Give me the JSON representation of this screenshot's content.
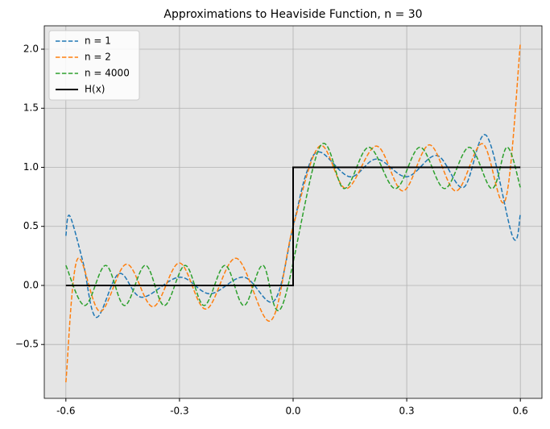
{
  "chart_data": {
    "type": "line",
    "title": "Approximations to Heaviside Function, n = 30",
    "xlim": [
      -0.657,
      0.657
    ],
    "ylim": [
      -0.956,
      2.198
    ],
    "xticks": [
      -0.6,
      -0.3,
      {
        "value": 0,
        "label": "0.0"
      },
      0.3,
      0.6
    ],
    "yticks": [
      {
        "value": -0.5,
        "label": "−0.5"
      },
      {
        "value": 0,
        "label": "0.0"
      },
      0.5,
      {
        "value": 1,
        "label": "1.0"
      },
      1.5,
      {
        "value": 2,
        "label": "2.0"
      }
    ],
    "grid": true,
    "legend": "upper left",
    "series": [
      {
        "name": "n = 1",
        "color": "#1f77b4",
        "style": "dashed",
        "x": [
          -0.6,
          -0.59,
          -0.555,
          -0.52,
          -0.46,
          -0.4,
          -0.3,
          -0.22,
          -0.13,
          -0.05,
          0,
          0.035,
          0.07,
          0.15,
          0.22,
          0.3,
          0.38,
          0.45,
          0.51,
          0.58,
          0.6
        ],
        "values": [
          0.42,
          0.59,
          0.2,
          -0.27,
          0.1,
          -0.1,
          0.07,
          -0.07,
          0.07,
          -0.13,
          0.5,
          0.95,
          1.13,
          0.92,
          1.07,
          0.92,
          1.1,
          0.83,
          1.27,
          0.41,
          0.6
        ]
      },
      {
        "name": "n = 2",
        "color": "#ff7f0e",
        "style": "dashed",
        "x": [
          -0.6,
          -0.57,
          -0.51,
          -0.44,
          -0.37,
          -0.3,
          -0.23,
          -0.15,
          -0.06,
          0,
          0.07,
          0.14,
          0.22,
          0.29,
          0.36,
          0.43,
          0.5,
          0.56,
          0.6
        ],
        "values": [
          -0.82,
          0.22,
          -0.22,
          0.18,
          -0.18,
          0.19,
          -0.2,
          0.23,
          -0.3,
          0.5,
          1.18,
          0.82,
          1.18,
          0.8,
          1.19,
          0.8,
          1.2,
          0.72,
          2.05
        ]
      },
      {
        "name": "n = 4000",
        "color": "#2ca02c",
        "style": "dashed",
        "x": [
          -0.6,
          -0.55,
          -0.495,
          -0.445,
          -0.39,
          -0.34,
          -0.285,
          -0.235,
          -0.18,
          -0.13,
          -0.08,
          -0.03,
          0.07,
          0.135,
          0.2,
          0.27,
          0.335,
          0.4,
          0.465,
          0.525,
          0.565,
          0.6
        ],
        "values": [
          0.17,
          -0.17,
          0.17,
          -0.17,
          0.17,
          -0.17,
          0.17,
          -0.17,
          0.17,
          -0.17,
          0.17,
          -0.18,
          1.17,
          0.82,
          1.17,
          0.82,
          1.17,
          0.82,
          1.17,
          0.82,
          1.17,
          0.83
        ]
      },
      {
        "name": "H(x)",
        "color": "#000000",
        "style": "solid",
        "x": [
          -0.6,
          0,
          0,
          0.6
        ],
        "values": [
          0,
          0,
          1,
          1
        ]
      }
    ]
  }
}
